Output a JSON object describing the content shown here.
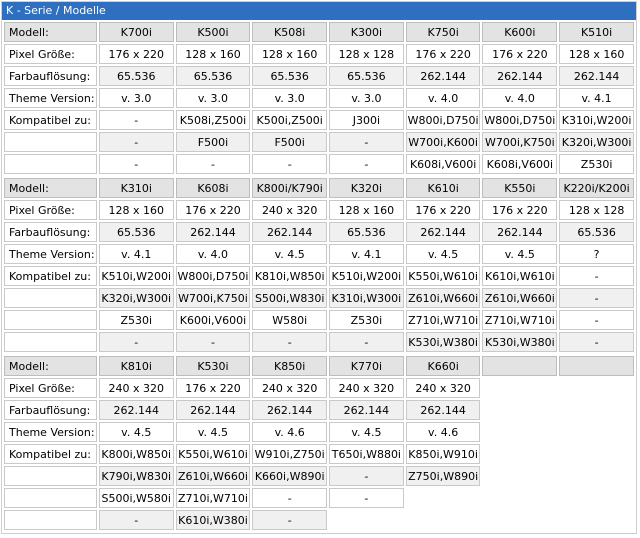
{
  "title": "K - Serie / Modelle",
  "labels": {
    "model": "Modell:",
    "pixel": "Pixel Größe:",
    "color": "Farbauflösung:",
    "theme": "Theme Version:",
    "compat": "Kompatibel zu:"
  },
  "sections": [
    {
      "models": [
        "K700i",
        "K500i",
        "K508i",
        "K300i",
        "K750i",
        "K600i",
        "K510i"
      ],
      "pixel": [
        "176 x 220",
        "128 x 160",
        "128 x 160",
        "128 x 128",
        "176 x 220",
        "176 x 220",
        "128 x 160"
      ],
      "color": [
        "65.536",
        "65.536",
        "65.536",
        "65.536",
        "262.144",
        "262.144",
        "262.144"
      ],
      "theme": [
        "v. 3.0",
        "v. 3.0",
        "v. 3.0",
        "v. 3.0",
        "v. 4.0",
        "v. 4.0",
        "v. 4.1"
      ],
      "compat": [
        [
          "-",
          "K508i,Z500i",
          "K500i,Z500i",
          "J300i",
          "W800i,D750i",
          "W800i,D750i",
          "K310i,W200i"
        ],
        [
          "-",
          "F500i",
          "F500i",
          "-",
          "W700i,K600i",
          "W700i,K750i",
          "K320i,W300i"
        ],
        [
          "-",
          "-",
          "-",
          "-",
          "K608i,V600i",
          "K608i,V600i",
          "Z530i"
        ]
      ]
    },
    {
      "models": [
        "K310i",
        "K608i",
        "K800i/K790i",
        "K320i",
        "K610i",
        "K550i",
        "K220i/K200i"
      ],
      "pixel": [
        "128 x 160",
        "176 x 220",
        "240 x 320",
        "128 x 160",
        "176 x 220",
        "176 x 220",
        "128 x 128"
      ],
      "color": [
        "65.536",
        "262.144",
        "262.144",
        "65.536",
        "262.144",
        "262.144",
        "65.536"
      ],
      "theme": [
        "v. 4.1",
        "v. 4.0",
        "v. 4.5",
        "v. 4.1",
        "v. 4.5",
        "v. 4.5",
        "?"
      ],
      "compat": [
        [
          "K510i,W200i",
          "W800i,D750i",
          "K810i,W850i",
          "K510i,W200i",
          "K550i,W610i",
          "K610i,W610i",
          "-"
        ],
        [
          "K320i,W300i",
          "W700i,K750i",
          "S500i,W830i",
          "K310i,W300i",
          "Z610i,W660i",
          "Z610i,W660i",
          "-"
        ],
        [
          "Z530i",
          "K600i,V600i",
          "W580i",
          "Z530i",
          "Z710i,W710i",
          "Z710i,W710i",
          "-"
        ],
        [
          "-",
          "-",
          "-",
          "-",
          "K530i,W380i",
          "K530i,W380i",
          "-"
        ]
      ]
    },
    {
      "models": [
        "K810i",
        "K530i",
        "K850i",
        "K770i",
        "K660i"
      ],
      "pixel": [
        "240 x 320",
        "176 x 220",
        "240 x 320",
        "240 x 320",
        "240 x 320"
      ],
      "color": [
        "262.144",
        "262.144",
        "262.144",
        "262.144",
        "262.144"
      ],
      "theme": [
        "v. 4.5",
        "v. 4.5",
        "v. 4.6",
        "v. 4.5",
        "v. 4.6"
      ],
      "compat": [
        [
          "K800i,W850i",
          "K550i,W610i",
          "W910i,Z750i",
          "T650i,W880i",
          "K850i,W910i"
        ],
        [
          "K790i,W830i",
          "Z610i,W660i",
          "K660i,W890i",
          "-",
          "Z750i,W890i"
        ],
        [
          "S500i,W580i",
          "Z710i,W710i",
          "-",
          "-",
          ""
        ],
        [
          "-",
          "K610i,W380i",
          "-",
          "",
          ""
        ]
      ]
    }
  ]
}
